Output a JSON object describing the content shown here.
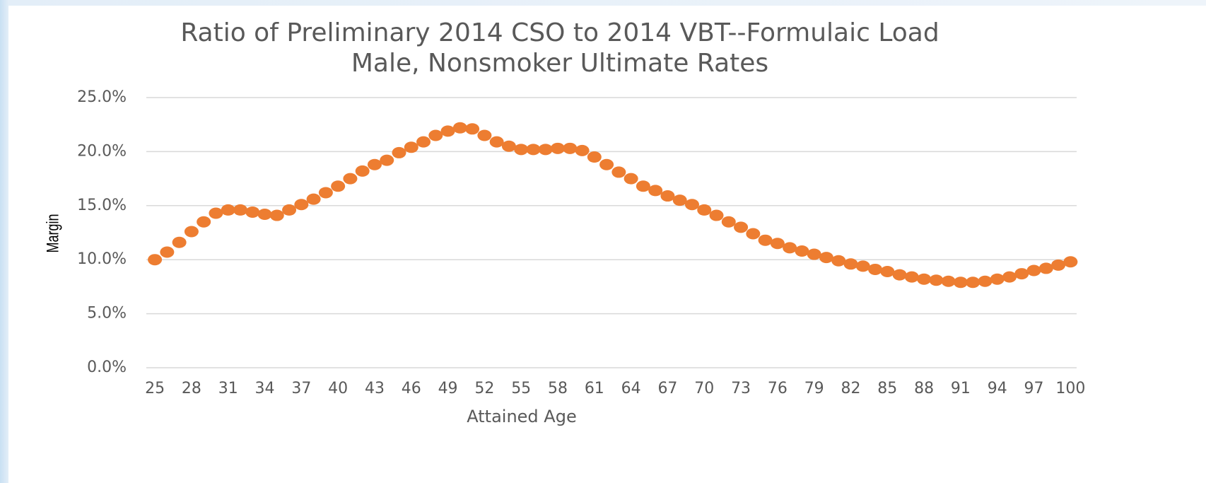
{
  "chart_data": {
    "type": "scatter",
    "title": [
      "Ratio of Preliminary 2014 CSO to 2014 VBT--Formulaic Load",
      "Male, Nonsmoker Ultimate Rates"
    ],
    "x_label": "Attained Age",
    "y_label": "Margin",
    "x": [
      25,
      26,
      27,
      28,
      29,
      30,
      31,
      32,
      33,
      34,
      35,
      36,
      37,
      38,
      39,
      40,
      41,
      42,
      43,
      44,
      45,
      46,
      47,
      48,
      49,
      50,
      51,
      52,
      53,
      54,
      55,
      56,
      57,
      58,
      59,
      60,
      61,
      62,
      63,
      64,
      65,
      66,
      67,
      68,
      69,
      70,
      71,
      72,
      73,
      74,
      75,
      76,
      77,
      78,
      79,
      80,
      81,
      82,
      83,
      84,
      85,
      86,
      87,
      88,
      89,
      90,
      91,
      92,
      93,
      94,
      95,
      96,
      97,
      98,
      99,
      100
    ],
    "series": [
      {
        "color": "#ed7d31",
        "values": [
          10.0,
          10.7,
          11.6,
          12.6,
          13.5,
          14.3,
          14.6,
          14.6,
          14.4,
          14.2,
          14.1,
          14.6,
          15.1,
          15.6,
          16.2,
          16.8,
          17.5,
          18.2,
          18.8,
          19.2,
          19.9,
          20.4,
          20.9,
          21.5,
          21.9,
          22.2,
          22.1,
          21.5,
          20.9,
          20.5,
          20.2,
          20.2,
          20.2,
          20.3,
          20.3,
          20.1,
          19.5,
          18.8,
          18.1,
          17.5,
          16.8,
          16.4,
          15.9,
          15.5,
          15.1,
          14.6,
          14.1,
          13.5,
          13.0,
          12.4,
          11.8,
          11.5,
          11.1,
          10.8,
          10.5,
          10.2,
          9.9,
          9.6,
          9.4,
          9.1,
          8.9,
          8.6,
          8.4,
          8.2,
          8.1,
          8.0,
          7.9,
          7.9,
          8.0,
          8.2,
          8.4,
          8.7,
          9.0,
          9.2,
          9.5,
          9.8
        ]
      }
    ],
    "xlim": [
      24.3,
      100.5
    ],
    "xticks": [
      25,
      28,
      31,
      34,
      37,
      40,
      43,
      46,
      49,
      52,
      55,
      58,
      61,
      64,
      67,
      70,
      73,
      76,
      79,
      82,
      85,
      88,
      91,
      94,
      97,
      100
    ],
    "ylim": [
      0,
      25
    ],
    "yticks": [
      {
        "value": 0,
        "label": "0.0%"
      },
      {
        "value": 5,
        "label": "5.0%"
      },
      {
        "value": 10,
        "label": "10.0%"
      },
      {
        "value": 15,
        "label": "15.0%"
      },
      {
        "value": 20,
        "label": "20.0%"
      },
      {
        "value": 25,
        "label": "25.0%"
      }
    ],
    "grid": true
  }
}
